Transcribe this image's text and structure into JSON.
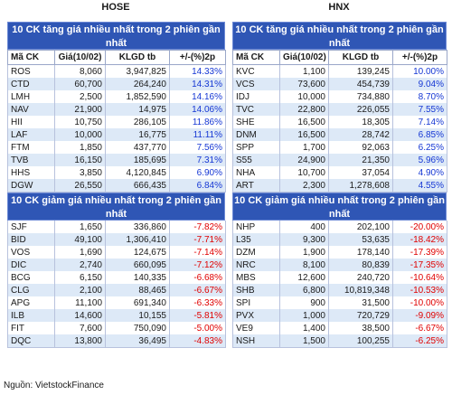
{
  "exchanges": {
    "left": "HOSE",
    "right": "HNX"
  },
  "columns": {
    "left": [
      "Mã CK",
      "Giá(10/02)",
      "KLGD tb",
      "+/-(%)2p"
    ],
    "right": [
      "Mã CK",
      "Giá(10/02)",
      "KLGD tb",
      "+/-(%)2p"
    ]
  },
  "sections": {
    "hose_up_title": "10 CK tăng giá nhiều nhất trong 2 phiên gần nhất",
    "hose_down_title": "10 CK giảm giá nhiều nhất trong 2 phiên gần nhất",
    "hnx_up_title": "10 CK tăng giá nhiều nhất trong 2 phiên gần nhất",
    "hnx_down_title": "10 CK giảm giá nhiều nhất trong 2 phiên gần nhất"
  },
  "hose_up": [
    [
      "ROS",
      "8,060",
      "3,947,825",
      "14.33%"
    ],
    [
      "CTD",
      "60,700",
      "264,240",
      "14.31%"
    ],
    [
      "LMH",
      "2,500",
      "1,852,590",
      "14.16%"
    ],
    [
      "NAV",
      "21,900",
      "14,975",
      "14.06%"
    ],
    [
      "HII",
      "10,750",
      "286,105",
      "11.86%"
    ],
    [
      "LAF",
      "10,000",
      "16,775",
      "11.11%"
    ],
    [
      "FTM",
      "1,850",
      "437,770",
      "7.56%"
    ],
    [
      "TVB",
      "16,150",
      "185,695",
      "7.31%"
    ],
    [
      "HHS",
      "3,850",
      "4,120,845",
      "6.90%"
    ],
    [
      "DGW",
      "26,550",
      "666,435",
      "6.84%"
    ]
  ],
  "hose_down": [
    [
      "SJF",
      "1,650",
      "336,860",
      "-7.82%"
    ],
    [
      "BID",
      "49,100",
      "1,306,410",
      "-7.71%"
    ],
    [
      "VOS",
      "1,690",
      "124,675",
      "-7.14%"
    ],
    [
      "DIC",
      "2,740",
      "660,095",
      "-7.12%"
    ],
    [
      "BCG",
      "6,150",
      "140,335",
      "-6.68%"
    ],
    [
      "CLG",
      "2,100",
      "88,465",
      "-6.67%"
    ],
    [
      "APG",
      "11,100",
      "691,340",
      "-6.33%"
    ],
    [
      "ILB",
      "14,600",
      "10,155",
      "-5.81%"
    ],
    [
      "FIT",
      "7,600",
      "750,090",
      "-5.00%"
    ],
    [
      "DQC",
      "13,800",
      "36,495",
      "-4.83%"
    ]
  ],
  "hnx_up": [
    [
      "KVC",
      "1,100",
      "139,245",
      "10.00%"
    ],
    [
      "VCS",
      "73,600",
      "454,739",
      "9.04%"
    ],
    [
      "IDJ",
      "10,000",
      "734,880",
      "8.70%"
    ],
    [
      "TVC",
      "22,800",
      "226,055",
      "7.55%"
    ],
    [
      "SHE",
      "16,500",
      "18,305",
      "7.14%"
    ],
    [
      "DNM",
      "16,500",
      "28,742",
      "6.85%"
    ],
    [
      "SPP",
      "1,700",
      "92,063",
      "6.25%"
    ],
    [
      "S55",
      "24,900",
      "21,350",
      "5.96%"
    ],
    [
      "NHA",
      "10,700",
      "37,054",
      "4.90%"
    ],
    [
      "ART",
      "2,300",
      "1,278,608",
      "4.55%"
    ]
  ],
  "hnx_down": [
    [
      "NHP",
      "400",
      "202,100",
      "-20.00%"
    ],
    [
      "L35",
      "9,300",
      "53,635",
      "-18.42%"
    ],
    [
      "DZM",
      "1,900",
      "178,140",
      "-17.39%"
    ],
    [
      "NRC",
      "8,100",
      "80,839",
      "-17.35%"
    ],
    [
      "MBS",
      "12,600",
      "240,720",
      "-10.64%"
    ],
    [
      "SHB",
      "6,800",
      "10,819,348",
      "-10.53%"
    ],
    [
      "SPI",
      "900",
      "31,500",
      "-10.00%"
    ],
    [
      "PVX",
      "1,000",
      "720,729",
      "-9.09%"
    ],
    [
      "VE9",
      "1,400",
      "38,500",
      "-6.67%"
    ],
    [
      "NSH",
      "1,500",
      "100,255",
      "-6.25%"
    ]
  ],
  "source": "Nguồn: VietstockFinance",
  "colors": {
    "header_bg": "#2f56b5",
    "up": "#1537d4",
    "down": "#e00000",
    "row_alt": "#dde9f7"
  }
}
